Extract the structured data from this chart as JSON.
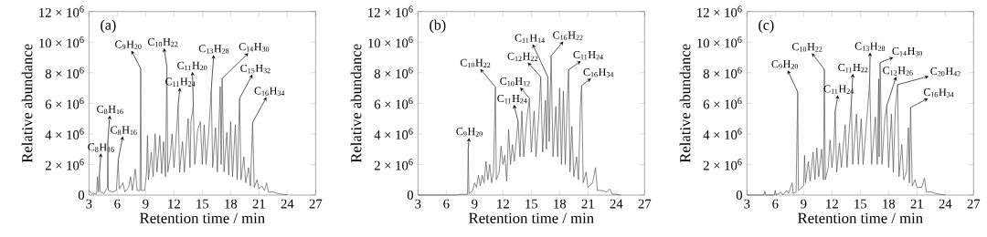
{
  "chart_data": [
    {
      "type": "line",
      "title": "(a)",
      "xlabel": "Retention time / min",
      "ylabel": "Relative abundance",
      "color": "#4d4d4d",
      "xlim": [
        3,
        27
      ],
      "xticks": [
        3,
        6,
        9,
        12,
        15,
        18,
        21,
        24,
        27
      ],
      "ylim": [
        0,
        12000000
      ],
      "yticks": [
        0,
        {
          "value": 2000000,
          "label": "2 × 10$^{6}$"
        },
        {
          "value": 4000000,
          "label": "4 × 10$^{6}$"
        },
        {
          "value": 6000000,
          "label": "6 × 10$^{6}$"
        },
        {
          "value": 8000000,
          "label": "8 × 10$^{6}$"
        },
        {
          "value": 10000000,
          "label": "10 × 10$^{6}$"
        },
        {
          "value": 12000000,
          "label": "12 × 10$^{6}$"
        }
      ],
      "x": [
        3.0,
        3.3,
        3.8,
        3.9,
        4.0,
        4.1,
        4.2,
        4.6,
        4.95,
        5.0,
        5.05,
        5.5,
        5.9,
        6.1,
        6.2,
        6.6,
        6.8,
        7.2,
        7.4,
        7.6,
        7.9,
        8.1,
        8.4,
        8.48,
        8.55,
        8.9,
        9.1,
        9.2,
        9.3,
        9.6,
        9.8,
        10.0,
        10.2,
        10.5,
        10.7,
        10.9,
        11.1,
        11.25,
        11.35,
        11.6,
        11.8,
        12.0,
        12.2,
        12.44,
        12.6,
        12.9,
        13.1,
        13.5,
        13.7,
        13.8,
        14.05,
        14.2,
        14.5,
        14.8,
        15.0,
        15.2,
        15.4,
        15.7,
        15.95,
        16.1,
        16.4,
        16.6,
        16.9,
        17.0,
        17.1,
        17.3,
        17.6,
        17.8,
        18.0,
        18.2,
        18.5,
        18.7,
        18.95,
        19.1,
        19.4,
        19.6,
        19.9,
        20.1,
        20.33,
        20.5,
        20.8,
        21.0,
        21.3,
        21.6,
        21.8,
        22.0,
        22.5,
        23.0,
        23.5,
        24.0
      ],
      "values": [
        300000,
        100000,
        100000,
        1200000,
        200000,
        1300000,
        200000,
        100000,
        500000,
        3540000,
        300000,
        200000,
        300000,
        2300000,
        400000,
        800000,
        200000,
        500000,
        1200000,
        300000,
        1700000,
        300000,
        300000,
        8260000,
        300000,
        300000,
        1500000,
        3900000,
        1000000,
        2800000,
        1200000,
        4000000,
        1500000,
        3900000,
        1400000,
        3500000,
        1200000,
        8420000,
        1500000,
        2500000,
        4000000,
        1800000,
        3500000,
        5830000,
        1500000,
        3500000,
        1500000,
        5000000,
        1800000,
        4800000,
        5800000,
        2000000,
        4200000,
        4800000,
        2000000,
        4600000,
        2000000,
        4300000,
        6900000,
        1800000,
        4400000,
        1500000,
        7100000,
        2000000,
        7620000,
        1500000,
        4100000,
        1300000,
        4800000,
        1200000,
        4600000,
        1000000,
        6330000,
        1000000,
        2500000,
        800000,
        1800000,
        600000,
        4740000,
        500000,
        1000000,
        400000,
        600000,
        300000,
        800000,
        200000,
        200000,
        100000,
        50000,
        20000
      ],
      "annotations": [
        {
          "text": "C$_{8}$H$_{16}$",
          "x": 4.1,
          "y": 1300000
        },
        {
          "text": "C$_{8}$H$_{16}$",
          "x": 5.0,
          "y": 3540000
        },
        {
          "text": "C$_{8}$H$_{16}$",
          "x": 6.1,
          "y": 2300000
        },
        {
          "text": "C$_{9}$H$_{20}$",
          "x": 8.48,
          "y": 8260000
        },
        {
          "text": "C$_{10}$H$_{22}$",
          "x": 11.25,
          "y": 8420000
        },
        {
          "text": "C$_{11}$H$_{24}$",
          "x": 12.44,
          "y": 5830000
        },
        {
          "text": "C$_{11}$H$_{20}$",
          "x": 14.05,
          "y": 5800000
        },
        {
          "text": "C$_{13}$H$_{28}$",
          "x": 15.95,
          "y": 6900000
        },
        {
          "text": "C$_{14}$H$_{30}$",
          "x": 17.1,
          "y": 7620000
        },
        {
          "text": "C$_{15}$H$_{32}$",
          "x": 18.95,
          "y": 6330000
        },
        {
          "text": "C$_{16}$H$_{34}$",
          "x": 20.33,
          "y": 4740000
        }
      ]
    },
    {
      "type": "line",
      "title": "(b)",
      "xlabel": "Retention time / min",
      "ylabel": "Relative abundance",
      "color": "#4d4d4d",
      "xlim": [
        3,
        27
      ],
      "xticks": [
        3,
        6,
        9,
        12,
        15,
        18,
        21,
        24,
        27
      ],
      "ylim": [
        0,
        12000000
      ],
      "yticks": [
        0,
        {
          "value": 2000000,
          "label": "2 × 10$^{6}$"
        },
        {
          "value": 4000000,
          "label": "4 × 10$^{6}$"
        },
        {
          "value": 6000000,
          "label": "6 × 10$^{6}$"
        },
        {
          "value": 8000000,
          "label": "8 × 10$^{6}$"
        },
        {
          "value": 10000000,
          "label": "10 × 10$^{6}$"
        },
        {
          "value": 12000000,
          "label": "12 × 10$^{6}$"
        }
      ],
      "x": [
        3.0,
        7.0,
        7.5,
        8.0,
        8.25,
        8.32,
        8.4,
        8.8,
        9.0,
        9.2,
        9.4,
        9.6,
        9.8,
        10.0,
        10.2,
        10.4,
        10.6,
        10.8,
        11.0,
        11.2,
        11.3,
        11.6,
        11.8,
        12.0,
        12.2,
        12.4,
        12.6,
        12.8,
        13.0,
        13.2,
        13.4,
        13.6,
        13.8,
        14.0,
        14.2,
        14.5,
        14.8,
        15.0,
        15.3,
        15.5,
        15.8,
        16.0,
        16.2,
        16.5,
        16.6,
        16.76,
        16.9,
        17.1,
        17.3,
        17.6,
        17.8,
        18.0,
        18.2,
        18.4,
        18.6,
        18.8,
        18.95,
        19.1,
        19.3,
        19.5,
        19.8,
        20.0,
        20.2,
        20.33,
        20.5,
        20.8,
        21.0,
        21.5,
        21.8,
        22.0,
        22.5,
        23.0,
        23.3,
        23.6,
        24.0,
        24.5
      ],
      "values": [
        0,
        0,
        50000,
        50000,
        50000,
        3040000,
        100000,
        300000,
        800000,
        500000,
        1300000,
        600000,
        1300000,
        800000,
        2200000,
        1000000,
        2000000,
        800000,
        1500000,
        7060000,
        1000000,
        1500000,
        3200000,
        2000000,
        2600000,
        900000,
        4300000,
        2000000,
        3300000,
        2200000,
        3500000,
        4840000,
        2500000,
        5500000,
        2500000,
        4800000,
        6330000,
        2800000,
        5500000,
        2500000,
        5200000,
        7720000,
        2800000,
        6200000,
        3000000,
        7720000,
        3500000,
        9100000,
        2500000,
        5800000,
        2500000,
        7000000,
        2000000,
        6800000,
        2000000,
        6000000,
        8180000,
        1500000,
        4500000,
        1200000,
        2500000,
        1000000,
        5800000,
        7160000,
        800000,
        1500000,
        500000,
        800000,
        1800000,
        300000,
        300000,
        200000,
        400000,
        50000,
        50000,
        0
      ],
      "annotations": [
        {
          "text": "C$_{9}$H$_{20}$",
          "x": 8.32,
          "y": 3040000
        },
        {
          "text": "C$_{10}$H$_{22}$",
          "x": 11.2,
          "y": 7060000
        },
        {
          "text": "C$_{11}$H$_{24}$",
          "x": 13.6,
          "y": 4840000
        },
        {
          "text": "C$_{10}$H$_{12}$",
          "x": 14.8,
          "y": 6330000
        },
        {
          "text": "C$_{12}$H$_{22}$",
          "x": 16.0,
          "y": 7720000
        },
        {
          "text": "C$_{11}$H$_{14}$",
          "x": 16.76,
          "y": 7720000
        },
        {
          "text": "C$_{16}$H$_{22}$",
          "x": 17.1,
          "y": 9100000
        },
        {
          "text": "C$_{11}$H$_{24}$",
          "x": 18.95,
          "y": 8180000
        },
        {
          "text": "C$_{16}$H$_{34}$",
          "x": 20.33,
          "y": 7160000
        }
      ]
    },
    {
      "type": "line",
      "title": "(c)",
      "xlabel": "Retention time / min",
      "ylabel": "Relative abundance",
      "color": "#4d4d4d",
      "xlim": [
        3,
        27
      ],
      "xticks": [
        3,
        6,
        9,
        12,
        15,
        18,
        21,
        24,
        27
      ],
      "ylim": [
        0,
        12000000
      ],
      "yticks": [
        0,
        {
          "value": 2000000,
          "label": "2 × 10$^{6}$"
        },
        {
          "value": 4000000,
          "label": "4 × 10$^{6}$"
        },
        {
          "value": 6000000,
          "label": "6 × 10$^{6}$"
        },
        {
          "value": 8000000,
          "label": "8 × 10$^{6}$"
        },
        {
          "value": 10000000,
          "label": "10 × 10$^{6}$"
        },
        {
          "value": 12000000,
          "label": "12 × 10$^{6}$"
        }
      ],
      "x": [
        3.0,
        4.8,
        4.9,
        5.0,
        5.9,
        6.0,
        6.1,
        6.6,
        6.8,
        7.2,
        7.4,
        7.8,
        7.9,
        8.2,
        8.38,
        8.45,
        8.8,
        9.0,
        9.1,
        9.2,
        9.5,
        9.7,
        10.0,
        10.2,
        10.4,
        10.6,
        10.9,
        11.1,
        11.2,
        11.3,
        11.6,
        11.8,
        12.0,
        12.2,
        12.34,
        12.5,
        12.8,
        13.0,
        13.4,
        13.6,
        13.8,
        14.05,
        14.2,
        14.6,
        14.8,
        15.1,
        15.3,
        15.7,
        16.0,
        16.2,
        16.6,
        16.8,
        16.95,
        17.0,
        17.1,
        17.3,
        17.6,
        17.8,
        18.0,
        18.3,
        18.5,
        18.7,
        18.95,
        19.1,
        19.4,
        19.6,
        19.9,
        20.1,
        20.2,
        20.33,
        20.5,
        20.8,
        21.0,
        21.5,
        21.8,
        22.0,
        22.5,
        23.0,
        23.5,
        24.0
      ],
      "values": [
        0,
        0,
        250000,
        0,
        0,
        300000,
        0,
        200000,
        0,
        300000,
        100000,
        800000,
        100000,
        200000,
        6730000,
        300000,
        500000,
        600000,
        2600000,
        800000,
        2200000,
        900000,
        2800000,
        1000000,
        3100000,
        1200000,
        3000000,
        1000000,
        8220000,
        1000000,
        1800000,
        3600000,
        1800000,
        3000000,
        5470000,
        1500000,
        3400000,
        1800000,
        4600000,
        1800000,
        4000000,
        6030000,
        2000000,
        5300000,
        2000000,
        5000000,
        2000000,
        5000000,
        7420000,
        2000000,
        5100000,
        2000000,
        7600000,
        2500000,
        8660000,
        2000000,
        5000000,
        5830000,
        1800000,
        5300000,
        1500000,
        5500000,
        7220000,
        1200000,
        3300000,
        1000000,
        1500000,
        4400000,
        800000,
        5730000,
        600000,
        1000000,
        500000,
        500000,
        1100000,
        200000,
        200000,
        100000,
        50000,
        0
      ],
      "annotations": [
        {
          "text": "C$_{9}$H$_{20}$",
          "x": 8.38,
          "y": 6730000
        },
        {
          "text": "C$_{10}$H$_{22}$",
          "x": 11.2,
          "y": 8220000
        },
        {
          "text": "C$_{11}$H$_{24}$",
          "x": 12.34,
          "y": 5470000
        },
        {
          "text": "C$_{11}$H$_{22}$",
          "x": 14.05,
          "y": 6030000
        },
        {
          "text": "C$_{13}$H$_{28}$",
          "x": 16.0,
          "y": 7420000
        },
        {
          "text": "C$_{14}$H$_{30}$",
          "x": 17.1,
          "y": 8660000
        },
        {
          "text": "C$_{12}$H$_{26}$",
          "x": 17.8,
          "y": 5830000
        },
        {
          "text": "C$_{20}$H$_{42}$",
          "x": 18.95,
          "y": 7220000
        },
        {
          "text": "C$_{16}$H$_{34}$",
          "x": 20.33,
          "y": 5730000
        }
      ]
    }
  ]
}
